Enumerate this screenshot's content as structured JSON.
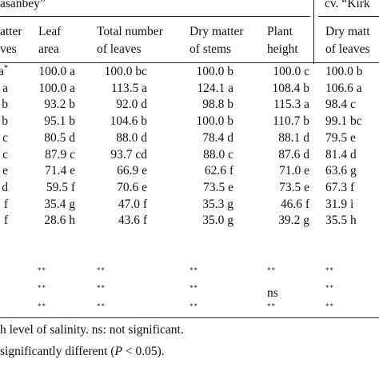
{
  "groups": {
    "left": "asanbey”",
    "right": "cv. “Kirk"
  },
  "headers": {
    "c1": [
      "atter",
      "ves"
    ],
    "c2": [
      "Leaf",
      "area"
    ],
    "c3": [
      "Total number",
      "of leaves"
    ],
    "c4": [
      "Dry matter",
      "of stems"
    ],
    "c5": [
      "Plant",
      "height"
    ],
    "c6": [
      "Dry matt",
      "of leaves"
    ]
  },
  "rows": [
    {
      "c1": "a",
      "c1sup": "*",
      "c2": "100.0 a",
      "c3": "100.0 bc",
      "c4": "100.0 b",
      "c5": "100.0 c",
      "c6": "100.0 b"
    },
    {
      "c1": "a",
      "c1sup": "",
      "c2": "100.0 a",
      "c3": "113.5 a",
      "c4": "124.1 a",
      "c5": "108.4 b",
      "c6": "106.6 a"
    },
    {
      "c1": "b",
      "c1sup": "",
      "c2": "93.2 b",
      "c3": "92.0 d",
      "c4": "98.8 b",
      "c5": "115.3 a",
      "c6": "98.4 c"
    },
    {
      "c1": "b",
      "c1sup": "",
      "c2": "95.1 b",
      "c3": "104.6 b",
      "c4": "100.0 b",
      "c5": "110.7 b",
      "c6": "99.1 bc"
    },
    {
      "c1": "c",
      "c1sup": "",
      "c2": "80.5 d",
      "c3": "88.0 d",
      "c4": "78.4 d",
      "c5": "88.1 d",
      "c6": "79.5 e"
    },
    {
      "c1": "c",
      "c1sup": "",
      "c2": "87.9 c",
      "c3": "93.7 cd",
      "c4": "88.0 c",
      "c5": "87.6 d",
      "c6": "81.4 d"
    },
    {
      "c1": "e",
      "c1sup": "",
      "c2": "71.4 e",
      "c3": "66.9 e",
      "c4": "62.6 f",
      "c5": "71.0 e",
      "c6": "63.6 g"
    },
    {
      "c1": "d",
      "c1sup": "",
      "c2": "59.5 f",
      "c3": "70.6 e",
      "c4": "73.5 e",
      "c5": "73.5 e",
      "c6": "67.3 f"
    },
    {
      "c1": "f",
      "c1sup": "",
      "c2": "35.4 g",
      "c3": "47.0 f",
      "c4": "35.3 g",
      "c5": "46.6 f",
      "c6": "31.9 i"
    },
    {
      "c1": "f",
      "c1sup": "",
      "c2": "28.6 h",
      "c3": "43.6 f",
      "c4": "35.0 g",
      "c5": "39.2 g",
      "c6": "35.5 h"
    }
  ],
  "sig": [
    {
      "c1": "",
      "c2": "**",
      "c3": "**",
      "c4": "**",
      "c5": "**",
      "c6": "**"
    },
    {
      "c1": "",
      "c2": "**",
      "c3": "**",
      "c4": "**",
      "c5": "ns",
      "c6": "**"
    },
    {
      "c1": "",
      "c2": "**",
      "c3": "**",
      "c4": "**",
      "c5": "**",
      "c6": "**"
    }
  ],
  "footnotes": {
    "line1": "h level of salinity. ns: not significant.",
    "line2_pre": " significantly different (",
    "line2_var": "P",
    "line2_post": " < 0.05)."
  }
}
